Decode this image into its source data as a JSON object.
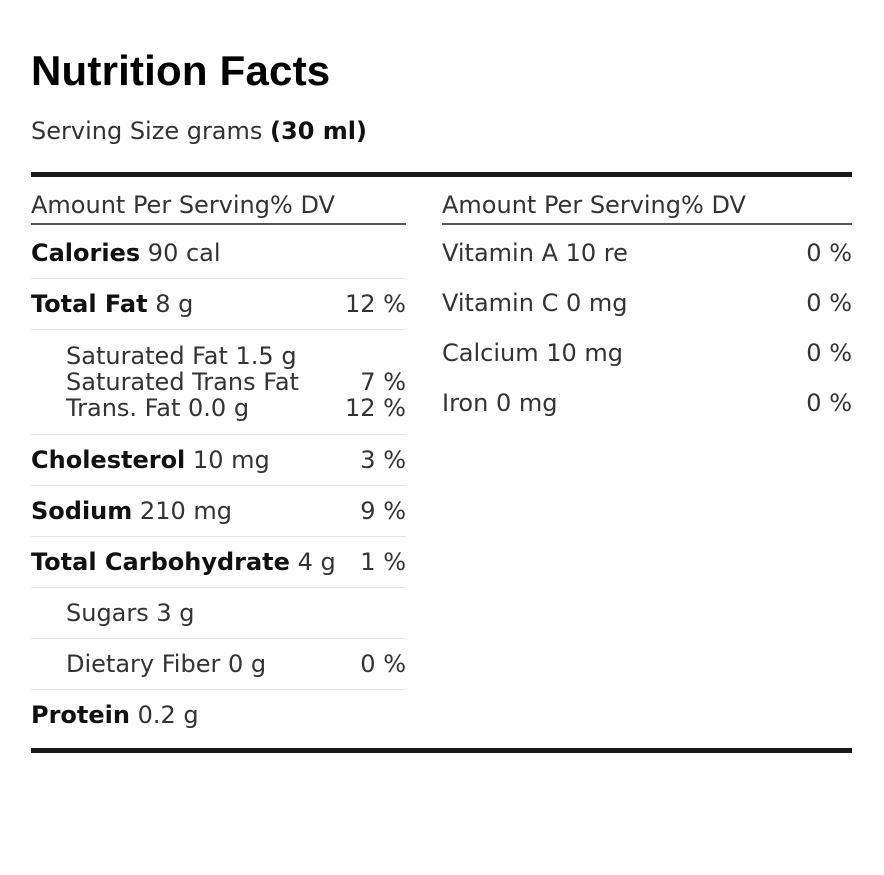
{
  "title": "Nutrition Facts",
  "serving": {
    "label": "Serving Size grams",
    "value": "(30 ml)"
  },
  "left_column": {
    "header": "Amount Per Serving% DV",
    "rows": [
      {
        "name": "Calories",
        "amount": "90 cal",
        "dv": ""
      },
      {
        "name": "Total Fat",
        "amount": "8 g",
        "dv": "12 %"
      },
      {
        "name": "Saturated Fat 1.5 g",
        "dv": ""
      },
      {
        "name": "Saturated Trans Fat",
        "dv": "7 %"
      },
      {
        "name": "Trans. Fat 0.0 g",
        "dv": "12 %"
      },
      {
        "name": "Cholesterol",
        "amount": "10 mg",
        "dv": "3 %"
      },
      {
        "name": "Sodium",
        "amount": "210 mg",
        "dv": "9 %"
      },
      {
        "name": "Total Carbohydrate",
        "amount": "4 g",
        "dv": "1 %"
      },
      {
        "name": "Sugars 3 g",
        "dv": ""
      },
      {
        "name": "Dietary Fiber 0 g",
        "dv": "0 %"
      },
      {
        "name": "Protein",
        "amount": "0.2 g",
        "dv": ""
      }
    ]
  },
  "right_column": {
    "header": "Amount Per Serving% DV",
    "rows": [
      {
        "name": "Vitamin A 10 re",
        "dv": "0 %"
      },
      {
        "name": "Vitamin C 0 mg",
        "dv": "0 %"
      },
      {
        "name": "Calcium 10 mg",
        "dv": "0 %"
      },
      {
        "name": "Iron 0 mg",
        "dv": "0 %"
      }
    ]
  }
}
